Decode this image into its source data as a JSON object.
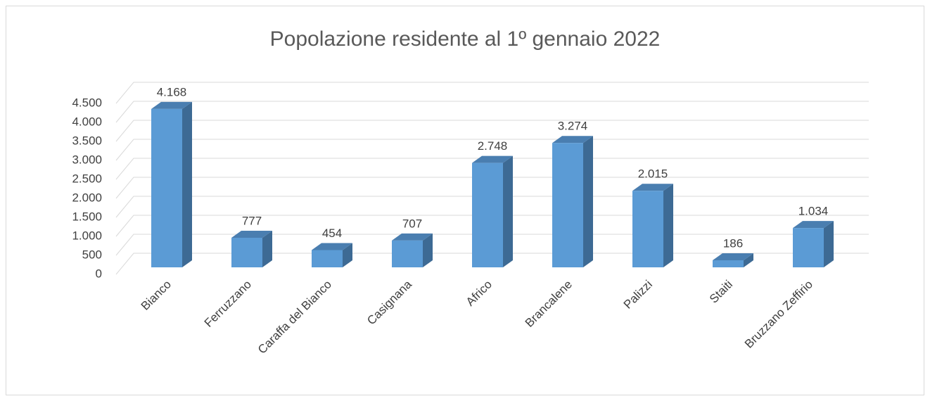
{
  "chart_data": {
    "type": "bar3d",
    "title": "Popolazione residente al 1º gennaio 2022",
    "categories": [
      "Bianco",
      "Ferruzzano",
      "Caraffa del Bianco",
      "Casignana",
      "Africo",
      "Brancalene",
      "Palizzi",
      "Staiti",
      "Bruzzano Zeffirio"
    ],
    "values": [
      4168,
      777,
      454,
      707,
      2748,
      3274,
      2015,
      186,
      1034
    ],
    "value_labels": [
      "4.168",
      "777",
      "454",
      "707",
      "2.748",
      "3.274",
      "2.015",
      "186",
      "1.034"
    ],
    "color": "#5b9bd5",
    "ylim": [
      0,
      4500
    ],
    "yticks": [
      0,
      500,
      {
        "value": 1000,
        "label": "1.000"
      },
      {
        "value": 1500,
        "label": "1.500"
      },
      {
        "value": 2000,
        "label": "2.000"
      },
      {
        "value": 2500,
        "label": "2.500"
      },
      {
        "value": 3000,
        "label": "3.000"
      },
      {
        "value": 3500,
        "label": "3.500"
      },
      {
        "value": 4000,
        "label": "4.000"
      },
      {
        "value": 4500,
        "label": "4.500"
      }
    ],
    "grid": true
  }
}
